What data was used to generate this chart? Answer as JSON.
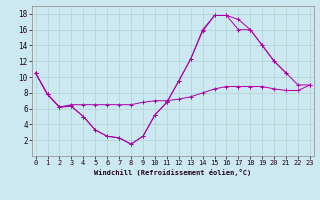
{
  "xlabel": "Windchill (Refroidissement éolien,°C)",
  "background_color": "#cce8f0",
  "line_color": "#aa00aa",
  "grid_color": "#aacccc",
  "xlim": [
    -0.3,
    23.3
  ],
  "ylim": [
    0,
    19
  ],
  "yticks": [
    2,
    4,
    6,
    8,
    10,
    12,
    14,
    16,
    18
  ],
  "xticks": [
    0,
    1,
    2,
    3,
    4,
    5,
    6,
    7,
    8,
    9,
    10,
    11,
    12,
    13,
    14,
    15,
    16,
    17,
    18,
    19,
    20,
    21,
    22,
    23
  ],
  "series1_x": [
    0,
    1,
    2,
    3,
    4,
    5,
    6,
    7,
    8,
    9,
    10,
    11,
    12,
    13,
    14,
    15,
    16,
    17,
    18,
    19,
    20,
    21
  ],
  "series1_y": [
    10.5,
    7.8,
    6.2,
    6.3,
    5.0,
    3.3,
    2.5,
    2.3,
    1.5,
    2.5,
    5.2,
    6.8,
    9.5,
    12.3,
    16.0,
    17.8,
    17.8,
    17.3,
    16.0,
    14.0,
    12.0,
    10.5
  ],
  "series2_x": [
    0,
    1,
    2,
    3,
    4,
    5,
    6,
    7,
    8,
    9,
    10,
    11,
    12,
    13,
    14,
    15,
    16,
    17,
    18,
    19,
    20,
    21,
    22,
    23
  ],
  "series2_y": [
    10.5,
    7.8,
    6.2,
    6.5,
    6.5,
    6.5,
    6.5,
    6.5,
    6.5,
    6.8,
    7.0,
    7.0,
    7.2,
    7.5,
    8.0,
    8.5,
    8.8,
    8.8,
    8.8,
    8.8,
    8.5,
    8.3,
    8.3,
    9.0
  ],
  "series3_x": [
    0,
    1,
    2,
    3,
    4,
    5,
    6,
    7,
    8,
    9,
    10,
    11,
    12,
    13,
    14,
    15,
    16,
    17,
    18,
    19,
    20,
    21,
    22,
    23
  ],
  "series3_y": [
    10.5,
    7.8,
    6.2,
    6.3,
    5.0,
    3.3,
    2.5,
    2.3,
    1.5,
    2.5,
    5.2,
    6.8,
    9.5,
    12.3,
    15.8,
    17.8,
    17.8,
    16.0,
    16.0,
    14.0,
    12.0,
    10.5,
    9.0,
    9.0
  ],
  "tick_fontsize": 5,
  "xlabel_fontsize": 5,
  "linewidth": 0.7,
  "markersize": 2.5
}
